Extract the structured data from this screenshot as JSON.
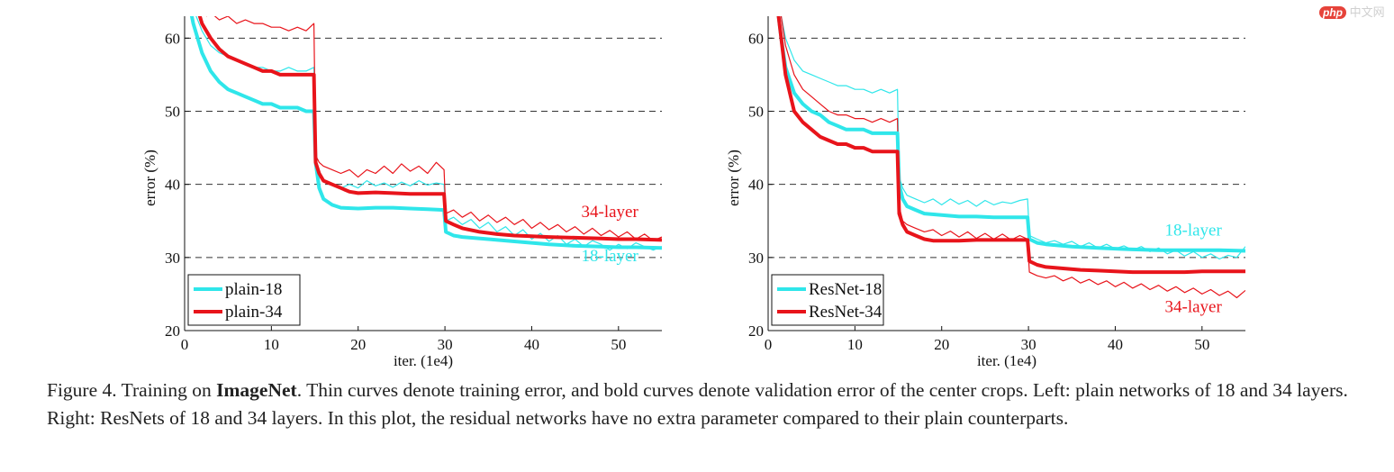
{
  "watermark": {
    "badge": "php",
    "text": "中文网"
  },
  "caption": {
    "prefix": "Figure 4. Training on ",
    "bold": "ImageNet",
    "rest": ". Thin curves denote training error, and bold curves denote validation error of the center crops. Left: plain networks of 18 and 34 layers. Right: ResNets of 18 and 34 layers. In this plot, the residual networks have no extra parameter compared to their plain counterparts."
  },
  "colors": {
    "cyan": "#2fe6ea",
    "red": "#e8141b",
    "grid": "#333333",
    "axis": "#111111"
  },
  "chart_data": [
    {
      "type": "line",
      "xlabel": "iter. (1e4)",
      "ylabel": "error (%)",
      "xlim": [
        0,
        55
      ],
      "ylim": [
        20,
        63
      ],
      "xticks": [
        0,
        10,
        20,
        30,
        40,
        50
      ],
      "yticks": [
        20,
        30,
        40,
        50,
        60
      ],
      "grid": "horizontal dashed at 30, 40, 50, 60",
      "legend_position": "bottom-left",
      "legend": [
        "plain-18",
        "plain-34"
      ],
      "annotations": [
        {
          "text": "34-layer",
          "x": 49,
          "y": 35.5,
          "color": "red"
        },
        {
          "text": "18-layer",
          "x": 49,
          "y": 29.5,
          "color": "cyan"
        }
      ],
      "series": [
        {
          "name": "plain-18",
          "color": "cyan",
          "style": "bold",
          "x": [
            0.5,
            1,
            2,
            3,
            4,
            5,
            6,
            7,
            8,
            9,
            10,
            11,
            12,
            13,
            14,
            14.9,
            15.1,
            15.5,
            16,
            17,
            18,
            20,
            22,
            24,
            26,
            28,
            29.9,
            30.1,
            31,
            32,
            35,
            38,
            40,
            42,
            45,
            48,
            50,
            52,
            55
          ],
          "y": [
            65,
            62,
            58,
            55.5,
            54,
            53,
            52.5,
            52,
            51.5,
            51,
            51,
            50.5,
            50.5,
            50.5,
            50,
            50,
            43,
            39.5,
            38,
            37.2,
            36.8,
            36.7,
            36.8,
            36.8,
            36.7,
            36.6,
            36.5,
            33.5,
            33,
            32.8,
            32.5,
            32.2,
            32,
            31.8,
            31.6,
            31.5,
            31.4,
            31.4,
            31.3
          ]
        },
        {
          "name": "plain-18 train",
          "color": "cyan",
          "style": "thin",
          "x": [
            0.5,
            1,
            2,
            3,
            4,
            5,
            6,
            7,
            8,
            9,
            10,
            11,
            12,
            13,
            14,
            14.9,
            15.1,
            15.5,
            16,
            17,
            18,
            19,
            20,
            21,
            22,
            23,
            24,
            25,
            26,
            27,
            28,
            29,
            29.9,
            30.1,
            31,
            32,
            33,
            34,
            35,
            36,
            37,
            38,
            39,
            40,
            41,
            42,
            43,
            44,
            45,
            46,
            47,
            48,
            49,
            50,
            51,
            52,
            53,
            54,
            55
          ],
          "y": [
            66,
            64,
            61,
            59,
            58,
            57.5,
            57,
            56.5,
            56,
            56,
            55.5,
            55.5,
            56,
            55.5,
            55.5,
            56,
            44,
            41,
            40.5,
            40,
            39.5,
            40,
            39.5,
            40.5,
            39.8,
            40.2,
            39.6,
            40.3,
            39.8,
            40.5,
            39.9,
            40.2,
            40,
            35,
            35.5,
            34.5,
            35.2,
            34,
            34.8,
            33.5,
            34.2,
            33,
            33.8,
            32.5,
            33.3,
            32.2,
            33,
            31.8,
            32.5,
            31.5,
            32.3,
            31.8,
            31,
            31.8,
            31.2,
            32,
            31.5,
            31,
            31.5
          ]
        },
        {
          "name": "plain-34",
          "color": "red",
          "style": "bold",
          "x": [
            1.5,
            2,
            3,
            4,
            5,
            6,
            7,
            8,
            9,
            10,
            11,
            12,
            13,
            14,
            14.9,
            15.1,
            15.5,
            16,
            17,
            18,
            19,
            20,
            22,
            24,
            26,
            28,
            29.9,
            30.1,
            31,
            32,
            34,
            36,
            38,
            40,
            42,
            45,
            48,
            50,
            52,
            55
          ],
          "y": [
            64,
            62,
            60,
            58.5,
            57.5,
            57,
            56.5,
            56,
            55.5,
            55.5,
            55,
            55,
            55,
            55,
            55,
            43,
            41.5,
            40.5,
            40,
            39.5,
            39,
            38.8,
            38.9,
            38.8,
            38.7,
            38.7,
            38.7,
            35,
            34.5,
            34,
            33.5,
            33.2,
            33,
            32.9,
            32.8,
            32.7,
            32.6,
            32.5,
            32.5,
            32.4
          ]
        },
        {
          "name": "plain-34 train",
          "color": "red",
          "style": "thin",
          "x": [
            2.5,
            3,
            4,
            5,
            6,
            7,
            8,
            9,
            10,
            11,
            12,
            13,
            14,
            14.9,
            15.1,
            15.5,
            16,
            17,
            18,
            19,
            20,
            21,
            22,
            23,
            24,
            25,
            26,
            27,
            28,
            29,
            29.9,
            30.1,
            31,
            32,
            33,
            34,
            35,
            36,
            37,
            38,
            39,
            40,
            41,
            42,
            43,
            44,
            45,
            46,
            47,
            48,
            49,
            50,
            51,
            52,
            53,
            54,
            55
          ],
          "y": [
            63,
            63.5,
            62.5,
            63,
            62,
            62.5,
            62,
            62,
            61.5,
            61.5,
            61,
            61.5,
            61,
            62,
            44,
            43,
            42.5,
            42,
            41.5,
            42,
            41,
            42,
            41.5,
            42.5,
            41.5,
            42.8,
            41.8,
            42.5,
            41.5,
            43,
            42,
            36,
            36.5,
            35.5,
            36.2,
            35,
            35.8,
            34.8,
            35.5,
            34.5,
            35.2,
            34,
            34.8,
            33.8,
            34.5,
            33.5,
            34.2,
            33.2,
            34,
            33,
            33.7,
            32.8,
            33.5,
            32.5,
            33.2,
            32.3,
            32.8
          ]
        }
      ]
    },
    {
      "type": "line",
      "xlabel": "iter. (1e4)",
      "ylabel": "error (%)",
      "xlim": [
        0,
        55
      ],
      "ylim": [
        20,
        63
      ],
      "xticks": [
        0,
        10,
        20,
        30,
        40,
        50
      ],
      "yticks": [
        20,
        30,
        40,
        50,
        60
      ],
      "grid": "horizontal dashed at 30, 40, 50, 60",
      "legend_position": "bottom-left",
      "legend": [
        "ResNet-18",
        "ResNet-34"
      ],
      "annotations": [
        {
          "text": "18-layer",
          "x": 49,
          "y": 33,
          "color": "cyan"
        },
        {
          "text": "34-layer",
          "x": 49,
          "y": 22.5,
          "color": "red"
        }
      ],
      "series": [
        {
          "name": "ResNet-18",
          "color": "cyan",
          "style": "bold",
          "x": [
            1,
            1.5,
            2,
            3,
            4,
            5,
            6,
            7,
            8,
            9,
            10,
            11,
            12,
            13,
            14,
            14.9,
            15.1,
            15.5,
            16,
            17,
            18,
            20,
            22,
            24,
            26,
            28,
            29.9,
            30.1,
            31,
            32,
            35,
            38,
            40,
            42,
            45,
            48,
            50,
            52,
            55
          ],
          "y": [
            65,
            60,
            56,
            52.5,
            51,
            50,
            49.5,
            48.5,
            48,
            47.5,
            47.5,
            47.5,
            47,
            47,
            47,
            47,
            40,
            38,
            37,
            36.5,
            36,
            35.8,
            35.6,
            35.6,
            35.5,
            35.5,
            35.5,
            32.5,
            32,
            31.8,
            31.5,
            31.3,
            31.2,
            31.1,
            31,
            31,
            31,
            31,
            30.9
          ]
        },
        {
          "name": "ResNet-18 train",
          "color": "cyan",
          "style": "thin",
          "x": [
            1.5,
            2,
            3,
            4,
            5,
            6,
            7,
            8,
            9,
            10,
            11,
            12,
            13,
            14,
            14.9,
            15.1,
            15.5,
            16,
            17,
            18,
            19,
            20,
            21,
            22,
            23,
            24,
            25,
            26,
            27,
            28,
            29,
            29.9,
            30.1,
            31,
            32,
            33,
            34,
            35,
            36,
            37,
            38,
            39,
            40,
            41,
            42,
            43,
            44,
            45,
            46,
            47,
            48,
            49,
            50,
            51,
            52,
            53,
            54,
            55
          ],
          "y": [
            63,
            60,
            57,
            55.5,
            55,
            54.5,
            54,
            53.5,
            53.5,
            53,
            53,
            52.5,
            53,
            52.5,
            53,
            41,
            39.5,
            38.5,
            38,
            37.5,
            38,
            37.2,
            38,
            37.3,
            37.8,
            37,
            37.8,
            37.2,
            37.6,
            37.4,
            37.8,
            38,
            33,
            32.5,
            32,
            32.3,
            31.8,
            32.2,
            31.5,
            32,
            31.3,
            31.8,
            31.2,
            31.6,
            31,
            31.5,
            30.8,
            31.3,
            30.5,
            31,
            30.2,
            30.8,
            30,
            30.5,
            29.8,
            30.3,
            30,
            31.5
          ]
        },
        {
          "name": "ResNet-34",
          "color": "red",
          "style": "bold",
          "x": [
            1,
            1.5,
            2,
            3,
            4,
            5,
            6,
            7,
            8,
            9,
            10,
            11,
            12,
            13,
            14,
            14.9,
            15.1,
            15.5,
            16,
            17,
            18,
            19,
            20,
            22,
            24,
            26,
            28,
            29.9,
            30.1,
            31,
            32,
            34,
            36,
            38,
            40,
            42,
            45,
            48,
            50,
            52,
            55
          ],
          "y": [
            65,
            60,
            55,
            50,
            48.5,
            47.5,
            46.5,
            46,
            45.5,
            45.5,
            45,
            45,
            44.5,
            44.5,
            44.5,
            44.5,
            36,
            34.5,
            33.5,
            33,
            32.5,
            32.3,
            32.3,
            32.3,
            32.4,
            32.4,
            32.4,
            32.4,
            29.5,
            29,
            28.7,
            28.5,
            28.3,
            28.2,
            28.1,
            28,
            28,
            28,
            28.1,
            28.1,
            28.1
          ]
        },
        {
          "name": "ResNet-34 train",
          "color": "red",
          "style": "thin",
          "x": [
            1.5,
            2,
            3,
            4,
            5,
            6,
            7,
            8,
            9,
            10,
            11,
            12,
            13,
            14,
            14.9,
            15.1,
            15.5,
            16,
            17,
            18,
            19,
            20,
            21,
            22,
            23,
            24,
            25,
            26,
            27,
            28,
            29,
            29.9,
            30.1,
            31,
            32,
            33,
            34,
            35,
            36,
            37,
            38,
            39,
            40,
            41,
            42,
            43,
            44,
            45,
            46,
            47,
            48,
            49,
            50,
            51,
            52,
            53,
            54,
            55
          ],
          "y": [
            63,
            59,
            55,
            53,
            52,
            51,
            50,
            49.5,
            49.5,
            49,
            49,
            48.5,
            49,
            48.5,
            49,
            37,
            35,
            34.5,
            34,
            33.5,
            33.8,
            33,
            33.6,
            32.8,
            33.5,
            32.6,
            33.3,
            32.5,
            33.2,
            32.4,
            33,
            32.5,
            28,
            27.5,
            27.2,
            27.5,
            26.8,
            27.3,
            26.5,
            27,
            26.3,
            26.8,
            26,
            26.6,
            25.8,
            26.4,
            25.6,
            26.2,
            25.4,
            26,
            25.2,
            25.8,
            25,
            25.6,
            24.8,
            25.4,
            24.5,
            25.5
          ]
        }
      ]
    }
  ]
}
